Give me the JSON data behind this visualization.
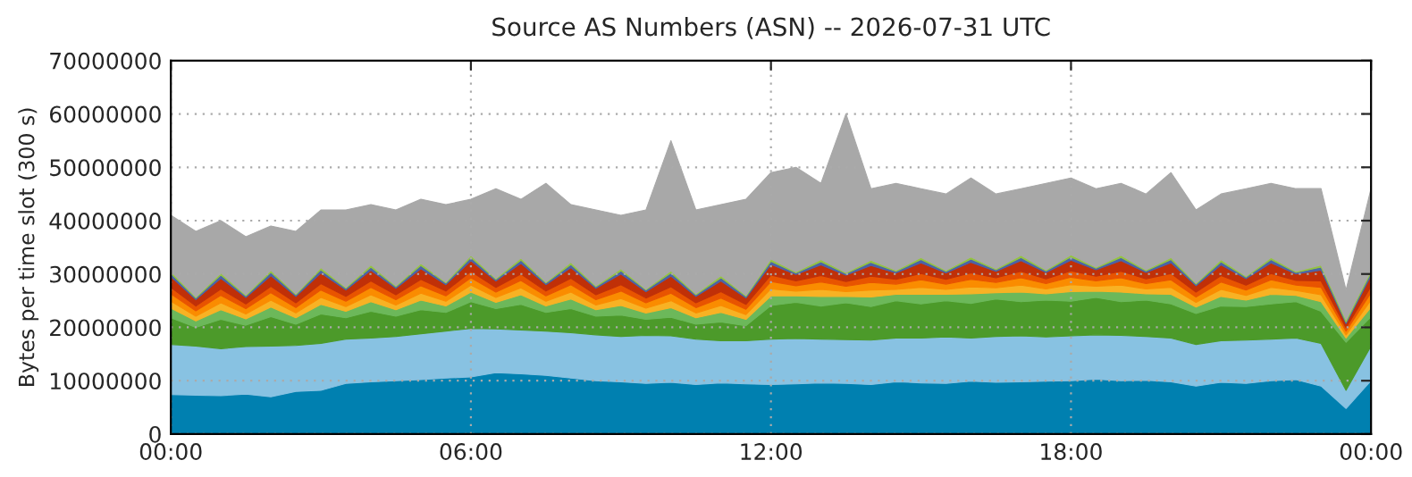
{
  "chart_data": {
    "type": "area",
    "stacked": true,
    "title": "Source AS Numbers (ASN) -- 2026-07-31 UTC",
    "ylabel": "Bytes per time slot (300 s)",
    "x": [
      0,
      0.5,
      1,
      1.5,
      2,
      2.5,
      3,
      3.5,
      4,
      4.5,
      5,
      5.5,
      6,
      6.5,
      7,
      7.5,
      8,
      8.5,
      9,
      9.5,
      10,
      10.5,
      11,
      11.5,
      12,
      12.5,
      13,
      13.5,
      14,
      14.5,
      15,
      15.5,
      16,
      16.5,
      17,
      17.5,
      18,
      18.5,
      19,
      19.5,
      20,
      20.5,
      21,
      21.5,
      22,
      22.5,
      23,
      23.5,
      24
    ],
    "xlim": [
      0,
      24
    ],
    "xticks": [
      {
        "value": 0,
        "label": "00:00"
      },
      {
        "value": 6,
        "label": "06:00"
      },
      {
        "value": 12,
        "label": "12:00"
      },
      {
        "value": 18,
        "label": "18:00"
      },
      {
        "value": 24,
        "label": "00:00"
      }
    ],
    "ylim": [
      0,
      70000000
    ],
    "yticks": [
      0,
      10000000,
      20000000,
      30000000,
      40000000,
      50000000,
      60000000,
      70000000
    ],
    "grid": true,
    "legend": false,
    "series": [
      {
        "color": "#0080b0",
        "values": [
          7400000,
          7300000,
          7200000,
          7500000,
          7000000,
          8000000,
          8200000,
          9500000,
          9800000,
          10000000,
          10200000,
          10500000,
          10700000,
          11500000,
          11300000,
          11000000,
          10500000,
          10000000,
          9800000,
          9500000,
          9700000,
          9300000,
          9600000,
          9400000,
          9300000,
          9400000,
          9600000,
          9500000,
          9300000,
          9800000,
          9600000,
          9500000,
          9900000,
          9700000,
          9800000,
          9900000,
          10000000,
          10300000,
          10000000,
          10100000,
          9800000,
          9000000,
          9700000,
          9500000,
          10000000,
          10200000,
          9000000,
          4800000,
          10000000
        ]
      },
      {
        "color": "#88c2e2",
        "values": [
          9400000,
          9200000,
          8800000,
          8900000,
          9500000,
          8600000,
          8800000,
          8300000,
          8200000,
          8300000,
          8600000,
          8800000,
          9100000,
          8200000,
          8200000,
          8300000,
          8500000,
          8600000,
          8500000,
          9000000,
          8700000,
          8500000,
          7900000,
          8100000,
          8500000,
          8500000,
          8200000,
          8200000,
          8300000,
          8200000,
          8400000,
          8700000,
          8100000,
          8600000,
          8600000,
          8300000,
          8400000,
          8300000,
          8500000,
          8200000,
          8200000,
          7800000,
          7800000,
          8100000,
          7800000,
          7800000,
          8000000,
          3400000,
          6500000
        ]
      },
      {
        "color": "#4c9a2a",
        "values": [
          5000000,
          3500000,
          5500000,
          4000000,
          5500000,
          4000000,
          5500000,
          4000000,
          5000000,
          3800000,
          4500000,
          3500000,
          5000000,
          3800000,
          4800000,
          3500000,
          4500000,
          3500000,
          4000000,
          3000000,
          3500000,
          2800000,
          3500000,
          2800000,
          6300000,
          6800000,
          6200000,
          6900000,
          6300000,
          7000000,
          6400000,
          6800000,
          6500000,
          7000000,
          6400000,
          6900000,
          6500000,
          7000000,
          6300000,
          6800000,
          6400000,
          5800000,
          6500000,
          6300000,
          6600000,
          6800000,
          6000000,
          9000000,
          5500000
        ]
      },
      {
        "color": "#6cb85a",
        "values": [
          1800000,
          1200000,
          1800000,
          1200000,
          1800000,
          1200000,
          1800000,
          1200000,
          1800000,
          1200000,
          1800000,
          1200000,
          1800000,
          1200000,
          1800000,
          1200000,
          1800000,
          1200000,
          1800000,
          1200000,
          1800000,
          1200000,
          1800000,
          1200000,
          1800000,
          1200000,
          1800000,
          1200000,
          1800000,
          1200000,
          1800000,
          1200000,
          1800000,
          1200000,
          1800000,
          1200000,
          1800000,
          1200000,
          1800000,
          1200000,
          1800000,
          1200000,
          1800000,
          1200000,
          1800000,
          1200000,
          1800000,
          800000,
          1800000
        ]
      },
      {
        "color": "#f8b224",
        "values": [
          1300000,
          900000,
          1300000,
          900000,
          1300000,
          900000,
          1300000,
          900000,
          1300000,
          900000,
          1300000,
          900000,
          1300000,
          900000,
          1300000,
          900000,
          1300000,
          900000,
          1300000,
          900000,
          1300000,
          900000,
          1300000,
          900000,
          1300000,
          900000,
          1300000,
          900000,
          1300000,
          900000,
          1300000,
          900000,
          1300000,
          900000,
          1300000,
          900000,
          1300000,
          900000,
          1300000,
          900000,
          1300000,
          900000,
          1300000,
          900000,
          1300000,
          900000,
          1300000,
          600000,
          1300000
        ]
      },
      {
        "color": "#fa8c00",
        "values": [
          1400000,
          1000000,
          1400000,
          1000000,
          1400000,
          1000000,
          1400000,
          1000000,
          1400000,
          1000000,
          1400000,
          1000000,
          1400000,
          1000000,
          1400000,
          1000000,
          1400000,
          1000000,
          1400000,
          1000000,
          1400000,
          1000000,
          1400000,
          1000000,
          1400000,
          1000000,
          1400000,
          1000000,
          1400000,
          1000000,
          1400000,
          1000000,
          1400000,
          1000000,
          1400000,
          1000000,
          1400000,
          1000000,
          1400000,
          1000000,
          1400000,
          1000000,
          1400000,
          1000000,
          1400000,
          1000000,
          1400000,
          700000,
          1400000
        ]
      },
      {
        "color": "#e85400",
        "values": [
          1200000,
          900000,
          1200000,
          900000,
          1200000,
          900000,
          1200000,
          900000,
          1200000,
          900000,
          1200000,
          900000,
          1200000,
          900000,
          1200000,
          900000,
          1200000,
          900000,
          1200000,
          900000,
          1200000,
          900000,
          1200000,
          900000,
          1200000,
          900000,
          1200000,
          900000,
          1200000,
          900000,
          1200000,
          900000,
          1200000,
          900000,
          1200000,
          900000,
          1200000,
          900000,
          1200000,
          900000,
          1200000,
          900000,
          1200000,
          900000,
          1200000,
          900000,
          1200000,
          600000,
          1200000
        ]
      },
      {
        "color": "#c03008",
        "values": [
          2000000,
          1200000,
          2000000,
          1200000,
          2000000,
          1200000,
          2000000,
          1200000,
          2000000,
          1200000,
          2000000,
          1200000,
          2000000,
          1200000,
          2000000,
          1200000,
          2000000,
          1200000,
          2000000,
          1200000,
          2000000,
          1200000,
          2000000,
          1200000,
          2000000,
          1200000,
          2000000,
          1200000,
          2000000,
          1200000,
          2000000,
          1200000,
          2000000,
          1200000,
          2000000,
          1200000,
          2000000,
          1200000,
          2000000,
          1200000,
          2000000,
          1200000,
          2000000,
          1200000,
          2000000,
          1200000,
          2000000,
          800000,
          2000000
        ]
      },
      {
        "color": "#4a64a8",
        "values": [
          600000,
          300000,
          600000,
          300000,
          600000,
          300000,
          600000,
          300000,
          600000,
          300000,
          600000,
          300000,
          600000,
          300000,
          600000,
          300000,
          600000,
          300000,
          600000,
          300000,
          600000,
          300000,
          600000,
          300000,
          600000,
          300000,
          600000,
          300000,
          600000,
          300000,
          600000,
          300000,
          600000,
          300000,
          600000,
          300000,
          600000,
          300000,
          600000,
          300000,
          600000,
          300000,
          600000,
          300000,
          600000,
          300000,
          600000,
          300000,
          600000
        ]
      },
      {
        "color": "#94c440",
        "values": [
          400000,
          200000,
          400000,
          200000,
          400000,
          200000,
          400000,
          200000,
          400000,
          200000,
          400000,
          200000,
          400000,
          200000,
          400000,
          200000,
          400000,
          200000,
          400000,
          200000,
          400000,
          200000,
          400000,
          200000,
          400000,
          200000,
          400000,
          200000,
          400000,
          200000,
          400000,
          200000,
          400000,
          200000,
          400000,
          200000,
          400000,
          200000,
          400000,
          200000,
          400000,
          200000,
          400000,
          200000,
          400000,
          200000,
          400000,
          400000,
          400000
        ]
      },
      {
        "color": "#a8a8a8",
        "values": [
          10500000,
          12300000,
          9800000,
          10900000,
          8300000,
          11700000,
          10800000,
          14500000,
          11300000,
          14200000,
          12000000,
          14500000,
          10500000,
          16800000,
          11000000,
          18500000,
          10800000,
          14200000,
          10000000,
          14800000,
          24400000,
          15700000,
          13300000,
          18000000,
          16200000,
          19600000,
          14300000,
          29700000,
          13400000,
          16300000,
          12900000,
          14300000,
          14800000,
          14000000,
          12500000,
          16200000,
          14400000,
          14700000,
          13500000,
          14200000,
          15900000,
          13700000,
          12300000,
          16400000,
          13900000,
          15500000,
          14300000,
          5600000,
          15300000
        ]
      }
    ]
  }
}
